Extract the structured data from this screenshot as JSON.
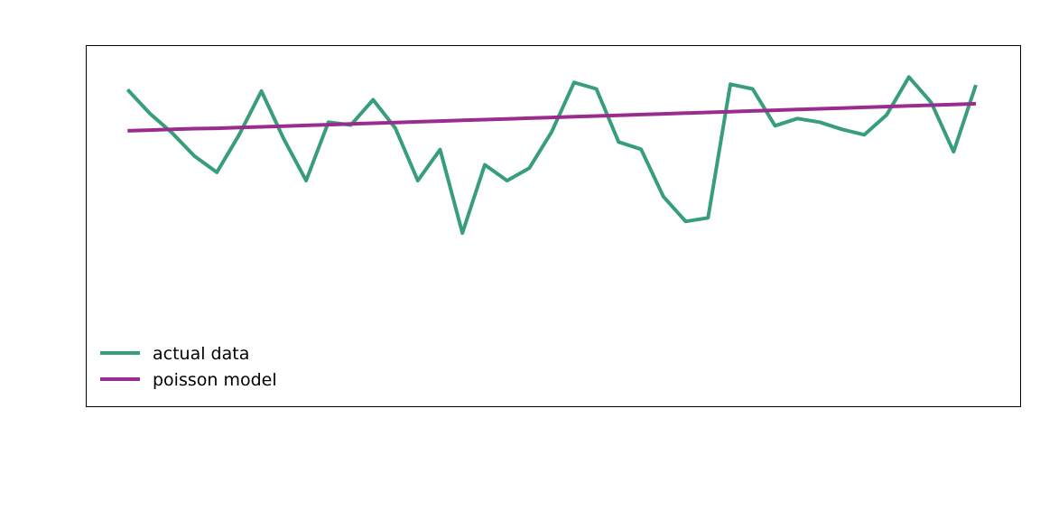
{
  "chart_data": {
    "type": "line",
    "title": "",
    "xlabel": "",
    "ylabel": "",
    "x": [
      0,
      1,
      2,
      3,
      4,
      5,
      6,
      7,
      8,
      9,
      10,
      11,
      12,
      13,
      14,
      15,
      16,
      17,
      18,
      19,
      20,
      21,
      22,
      23,
      24,
      25,
      26,
      27,
      28,
      29,
      30,
      31,
      32,
      33,
      34,
      35,
      36,
      37,
      38
    ],
    "xlim": [
      -1.85,
      40.0
    ],
    "ylim": [
      0,
      100
    ],
    "grid": false,
    "legend_position": "lower-left",
    "series": [
      {
        "name": "actual data",
        "color": "#379e79",
        "values": [
          87.8,
          81.2,
          75.8,
          69.4,
          64.9,
          75.3,
          87.4,
          74.1,
          62.6,
          78.8,
          78.0,
          85.0,
          77.1,
          62.6,
          71.2,
          48.1,
          67.0,
          62.6,
          66.1,
          76.1,
          89.8,
          88.0,
          73.3,
          71.3,
          58.2,
          51.3,
          52.3,
          89.3,
          88.0,
          77.8,
          79.8,
          78.8,
          76.8,
          75.3,
          80.8,
          91.3,
          84.2,
          70.6,
          89.1
        ]
      },
      {
        "name": "poisson model",
        "color": "#9b2c8f",
        "values": [
          76.4,
          76.6,
          76.8,
          77.0,
          77.1,
          77.3,
          77.5,
          77.7,
          77.9,
          78.1,
          78.3,
          78.5,
          78.7,
          78.9,
          79.1,
          79.3,
          79.5,
          79.7,
          79.9,
          80.1,
          80.3,
          80.5,
          80.7,
          80.9,
          81.1,
          81.3,
          81.5,
          81.7,
          81.9,
          82.1,
          82.3,
          82.5,
          82.7,
          82.9,
          83.1,
          83.3,
          83.5,
          83.7,
          83.9
        ]
      }
    ]
  }
}
